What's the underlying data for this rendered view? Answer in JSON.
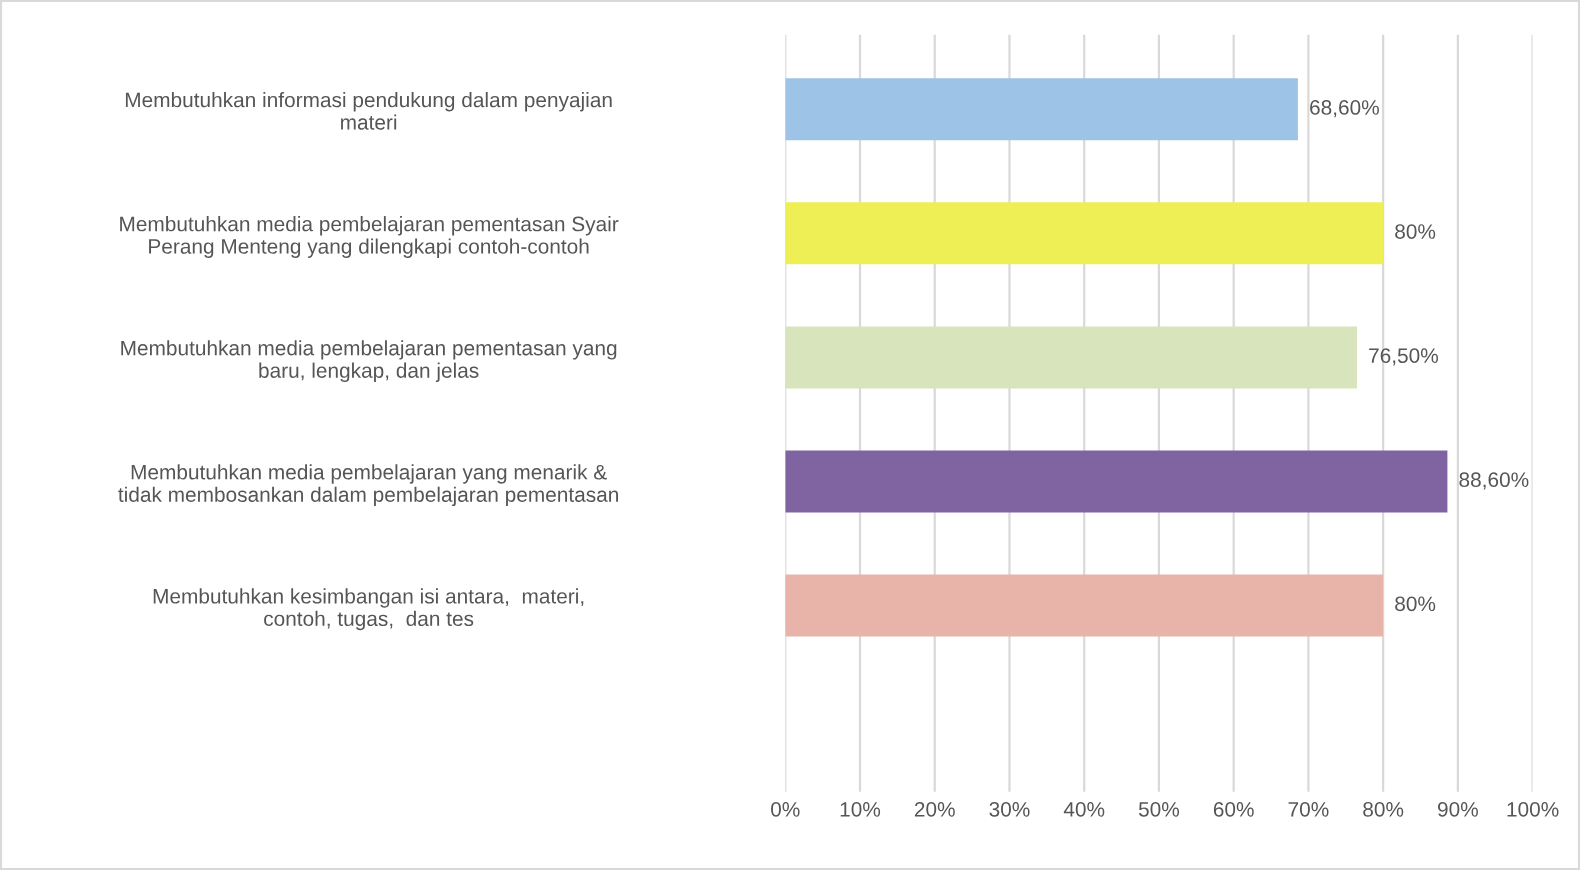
{
  "chart_data": {
    "type": "bar",
    "orientation": "horizontal",
    "categories": [
      "Membutuhkan informasi pendukung dalam penyajian\nmateri",
      "Membutuhkan media pembelajaran pementasan Syair\nPerang Menteng yang dilengkapi contoh-contoh",
      "Membutuhkan media pembelajaran pementasan yang\nbaru, lengkap, dan jelas",
      "Membutuhkan media pembelajaran yang menarik &\ntidak membosankan dalam pembelajaran pementasan",
      "Membutuhkan kesimbangan isi antara,  materi,\ncontoh, tugas,  dan tes"
    ],
    "values": [
      68.6,
      80,
      76.5,
      88.6,
      80
    ],
    "colors": [
      "#9dc3e6",
      "#eeee55",
      "#d8e4bc",
      "#8064a2",
      "#e8b4aa"
    ],
    "value_labels": [
      "68,60%",
      "80%",
      "76,50%",
      "88,60%",
      "80%"
    ],
    "xlim": [
      0,
      100
    ],
    "xticks": [
      {
        "value": 0,
        "label": "0%"
      },
      {
        "value": 10,
        "label": "10%"
      },
      {
        "value": 20,
        "label": "20%"
      },
      {
        "value": 30,
        "label": "30%"
      },
      {
        "value": 40,
        "label": "40%"
      },
      {
        "value": 50,
        "label": "50%"
      },
      {
        "value": 60,
        "label": "60%"
      },
      {
        "value": 70,
        "label": "70%"
      },
      {
        "value": 80,
        "label": "80%"
      },
      {
        "value": 90,
        "label": "90%"
      },
      {
        "value": 100,
        "label": "100%"
      }
    ],
    "grid": "x"
  }
}
